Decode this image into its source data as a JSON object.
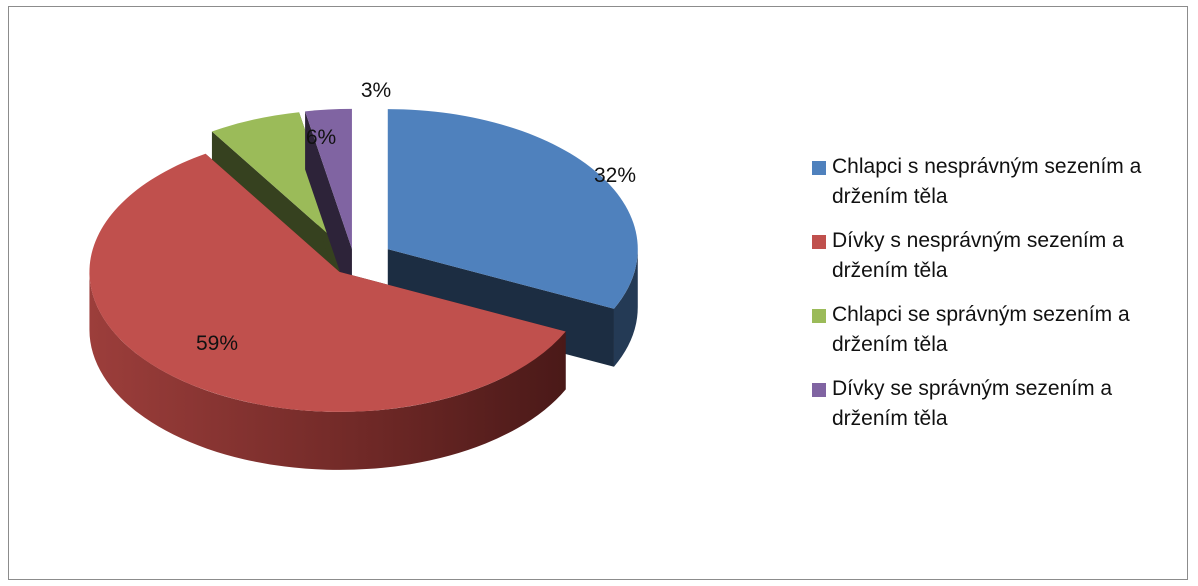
{
  "chart_data": {
    "type": "pie",
    "title": "",
    "three_d": true,
    "exploded": true,
    "legend_position": "right",
    "slices": [
      {
        "name": "Chlapci s nesprávným sezením a držením těla",
        "value": 32,
        "label": "32%",
        "color": "#4f81bd"
      },
      {
        "name": "Dívky s nesprávným sezením a držením těla",
        "value": 59,
        "label": "59%",
        "color": "#c0504d"
      },
      {
        "name": "Chlapci se správným sezením a držením těla",
        "value": 6,
        "label": "6%",
        "color": "#9bbb59"
      },
      {
        "name": "Dívky se správným sezením a držením těla",
        "value": 3,
        "label": "3%",
        "color": "#8064a2"
      }
    ]
  }
}
